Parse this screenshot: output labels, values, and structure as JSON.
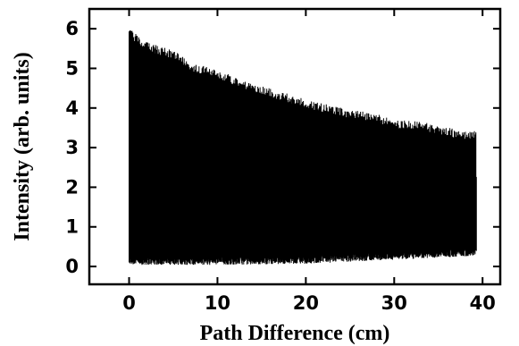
{
  "chart_data": {
    "type": "line",
    "title": "",
    "xlabel": "Path Difference (cm)",
    "ylabel": "Intensity (arb. units)",
    "xlim": [
      -4.5,
      42
    ],
    "ylim": [
      -0.45,
      6.5
    ],
    "x_ticks": [
      0,
      10,
      20,
      30,
      40
    ],
    "y_ticks": [
      0,
      1,
      2,
      3,
      4,
      5,
      6
    ],
    "x_tick_labels": [
      "0",
      "10",
      "20",
      "30",
      "40"
    ],
    "y_tick_labels": [
      "0",
      "1",
      "2",
      "3",
      "4",
      "5",
      "6"
    ],
    "grid": false,
    "legend": "none",
    "colors": {
      "trace": "#000000",
      "axes": "#000000",
      "background": "#ffffff"
    },
    "series": [
      {
        "description": "dense interferogram oscillation",
        "x_range": [
          0,
          39.3
        ],
        "upper_envelope": {
          "x": [
            0,
            2,
            5,
            7,
            10,
            13,
            15,
            18,
            20,
            23,
            25,
            28,
            30,
            33,
            35,
            37,
            39.3
          ],
          "y": [
            5.9,
            5.55,
            5.35,
            5.05,
            4.85,
            4.6,
            4.45,
            4.25,
            4.1,
            3.95,
            3.85,
            3.75,
            3.6,
            3.55,
            3.45,
            3.35,
            3.3
          ]
        },
        "lower_envelope": {
          "x": [
            0,
            10,
            20,
            30,
            39.3
          ],
          "y": [
            0.12,
            0.12,
            0.15,
            0.25,
            0.35
          ]
        }
      }
    ]
  }
}
